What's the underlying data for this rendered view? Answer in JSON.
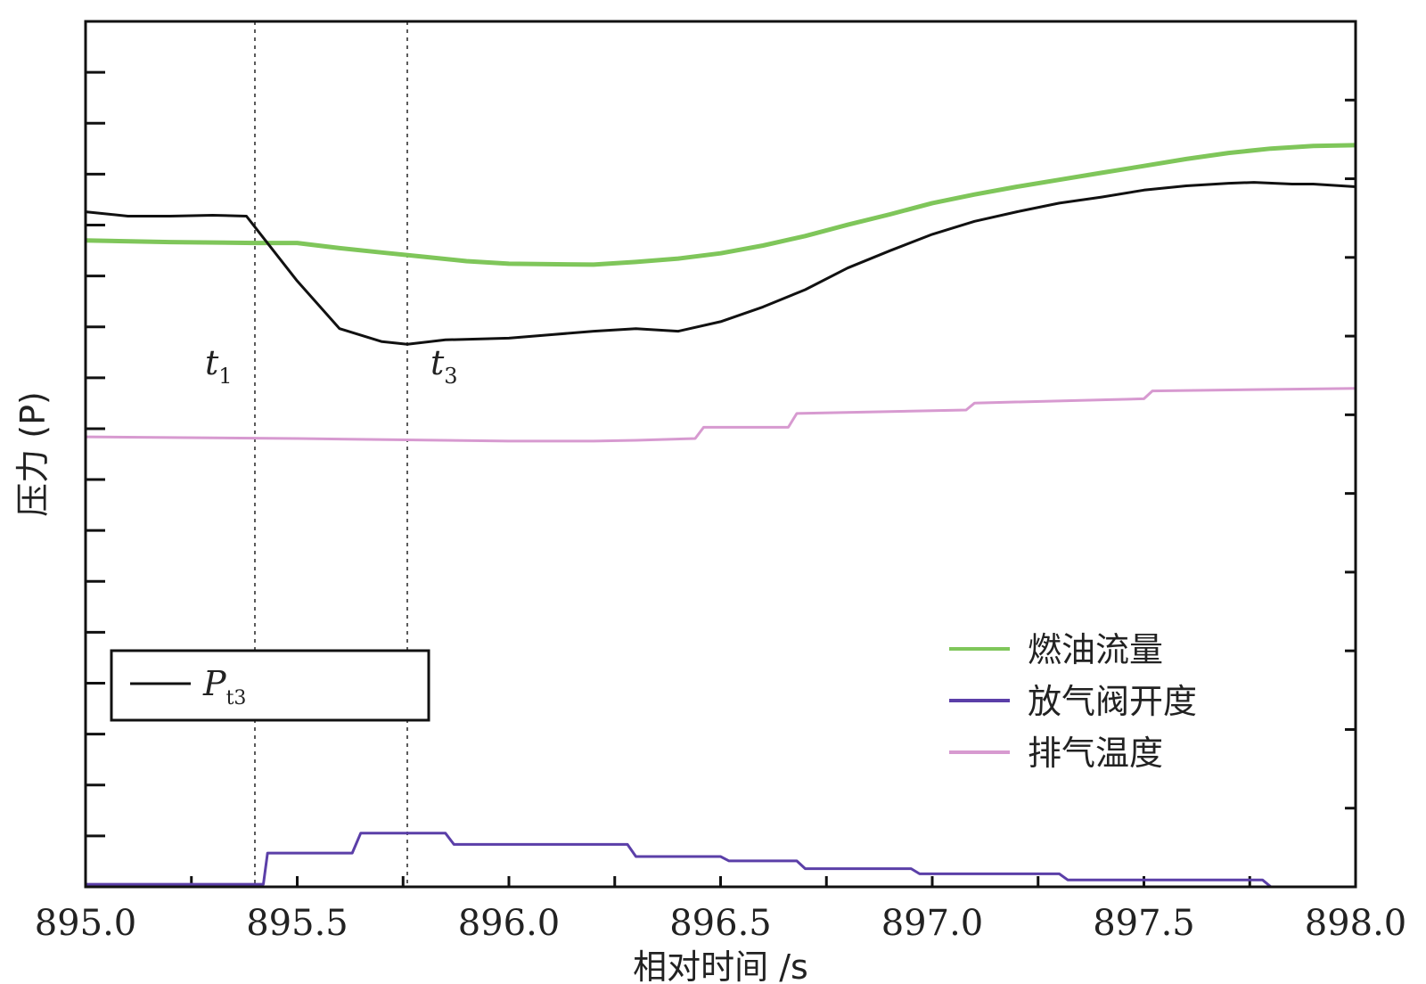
{
  "chart_data": {
    "type": "line",
    "xlabel": "相对时间 /s",
    "ylabel": "压力 (P)",
    "xlim": [
      895.0,
      898.0
    ],
    "ylim": [
      0,
      100
    ],
    "x_ticks": [
      "895.0",
      "895.5",
      "896.0",
      "896.5",
      "897.0",
      "897.5",
      "898.0"
    ],
    "y_tick_labels_shown": false,
    "grid": false,
    "markers": [
      {
        "name": "t",
        "sub": "1",
        "x": 895.4
      },
      {
        "name": "t",
        "sub": "3",
        "x": 895.76
      }
    ],
    "series": [
      {
        "name": "Pt3",
        "name_main": "P",
        "name_sub": "t3",
        "color": "#111111",
        "points": [
          [
            895.0,
            78
          ],
          [
            895.1,
            77.5
          ],
          [
            895.2,
            77.5
          ],
          [
            895.3,
            77.6
          ],
          [
            895.38,
            77.5
          ],
          [
            895.42,
            75
          ],
          [
            895.5,
            70
          ],
          [
            895.6,
            64.5
          ],
          [
            895.7,
            63
          ],
          [
            895.76,
            62.7
          ],
          [
            895.85,
            63.2
          ],
          [
            896.0,
            63.4
          ],
          [
            896.1,
            63.8
          ],
          [
            896.2,
            64.2
          ],
          [
            896.3,
            64.5
          ],
          [
            896.4,
            64.2
          ],
          [
            896.5,
            65.3
          ],
          [
            896.6,
            67
          ],
          [
            896.7,
            69
          ],
          [
            896.8,
            71.5
          ],
          [
            896.9,
            73.5
          ],
          [
            897.0,
            75.4
          ],
          [
            897.1,
            76.9
          ],
          [
            897.2,
            78
          ],
          [
            897.3,
            79
          ],
          [
            897.4,
            79.7
          ],
          [
            897.5,
            80.5
          ],
          [
            897.6,
            81
          ],
          [
            897.7,
            81.3
          ],
          [
            897.76,
            81.4
          ],
          [
            897.85,
            81.2
          ],
          [
            897.9,
            81.2
          ],
          [
            898.0,
            80.9
          ]
        ]
      },
      {
        "name": "燃油流量",
        "color": "#7fc65a",
        "points": [
          [
            895.0,
            74.7
          ],
          [
            895.2,
            74.5
          ],
          [
            895.4,
            74.4
          ],
          [
            895.5,
            74.4
          ],
          [
            895.6,
            73.8
          ],
          [
            895.7,
            73.3
          ],
          [
            895.8,
            72.8
          ],
          [
            895.9,
            72.3
          ],
          [
            896.0,
            72
          ],
          [
            896.2,
            71.9
          ],
          [
            896.3,
            72.2
          ],
          [
            896.4,
            72.6
          ],
          [
            896.5,
            73.2
          ],
          [
            896.6,
            74.1
          ],
          [
            896.7,
            75.2
          ],
          [
            896.8,
            76.5
          ],
          [
            896.9,
            77.7
          ],
          [
            897.0,
            79
          ],
          [
            897.1,
            80
          ],
          [
            897.2,
            80.9
          ],
          [
            897.3,
            81.7
          ],
          [
            897.4,
            82.5
          ],
          [
            897.5,
            83.3
          ],
          [
            897.6,
            84.1
          ],
          [
            897.7,
            84.8
          ],
          [
            897.8,
            85.3
          ],
          [
            897.9,
            85.6
          ],
          [
            898.0,
            85.7
          ]
        ]
      },
      {
        "name": "放气阀开度",
        "color": "#5b3fa8",
        "points": [
          [
            895.0,
            0.3
          ],
          [
            895.4,
            0.3
          ],
          [
            895.42,
            0.3
          ],
          [
            895.43,
            3.9
          ],
          [
            895.63,
            3.9
          ],
          [
            895.65,
            6.2
          ],
          [
            895.85,
            6.2
          ],
          [
            895.87,
            4.9
          ],
          [
            896.28,
            4.9
          ],
          [
            896.3,
            3.5
          ],
          [
            896.5,
            3.5
          ],
          [
            896.52,
            3
          ],
          [
            896.68,
            3
          ],
          [
            896.7,
            2.1
          ],
          [
            896.95,
            2.1
          ],
          [
            896.97,
            1.5
          ],
          [
            897.3,
            1.5
          ],
          [
            897.32,
            0.8
          ],
          [
            897.78,
            0.8
          ],
          [
            897.8,
            0
          ],
          [
            898.0,
            0
          ]
        ]
      },
      {
        "name": "排气温度",
        "color": "#d79ad0",
        "points": [
          [
            895.0,
            52
          ],
          [
            895.5,
            51.8
          ],
          [
            896.0,
            51.5
          ],
          [
            896.2,
            51.5
          ],
          [
            896.3,
            51.6
          ],
          [
            896.44,
            51.8
          ],
          [
            896.46,
            53.1
          ],
          [
            896.66,
            53.1
          ],
          [
            896.68,
            54.7
          ],
          [
            897.08,
            55.1
          ],
          [
            897.1,
            55.9
          ],
          [
            897.5,
            56.4
          ],
          [
            897.52,
            57.3
          ],
          [
            898.0,
            57.6
          ]
        ]
      }
    ],
    "legend": {
      "placement": "lower-right",
      "entries": [
        {
          "label": "燃油流量",
          "color": "#7fc65a"
        },
        {
          "label": "放气阀开度",
          "color": "#5b3fa8"
        },
        {
          "label": "排气温度",
          "color": "#d79ad0"
        }
      ]
    },
    "inset_legend": {
      "placement": "lower-left",
      "label_main": "P",
      "label_sub": "t3",
      "color": "#111111"
    }
  }
}
